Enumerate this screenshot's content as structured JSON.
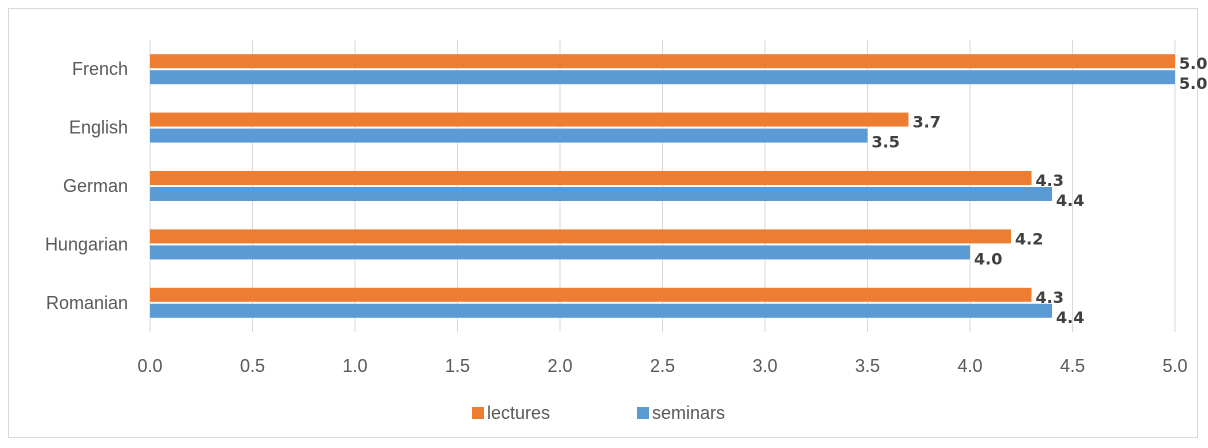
{
  "chart_data": {
    "type": "bar",
    "orientation": "horizontal",
    "title": "",
    "xlabel": "",
    "ylabel": "",
    "categories": [
      "French",
      "English",
      "German",
      "Hungarian",
      "Romanian"
    ],
    "series": [
      {
        "name": "lectures",
        "color": "#ed7d31",
        "values": [
          5.0,
          3.7,
          4.3,
          4.2,
          4.3
        ],
        "labels": [
          "5.0",
          "3.7",
          "4.3",
          "4.2",
          "4.3"
        ]
      },
      {
        "name": "seminars",
        "color": "#5b9bd5",
        "values": [
          5.0,
          3.5,
          4.4,
          4.0,
          4.4
        ],
        "labels": [
          "5.0",
          "3.5",
          "4.4",
          "4.0",
          "4.4"
        ]
      }
    ],
    "xlim": [
      0,
      5
    ],
    "x_ticks": [
      "0.0",
      "0.5",
      "1.0",
      "1.5",
      "2.0",
      "2.5",
      "3.0",
      "3.5",
      "4.0",
      "4.5",
      "5.0"
    ],
    "grid": true,
    "legend_position": "bottom"
  }
}
